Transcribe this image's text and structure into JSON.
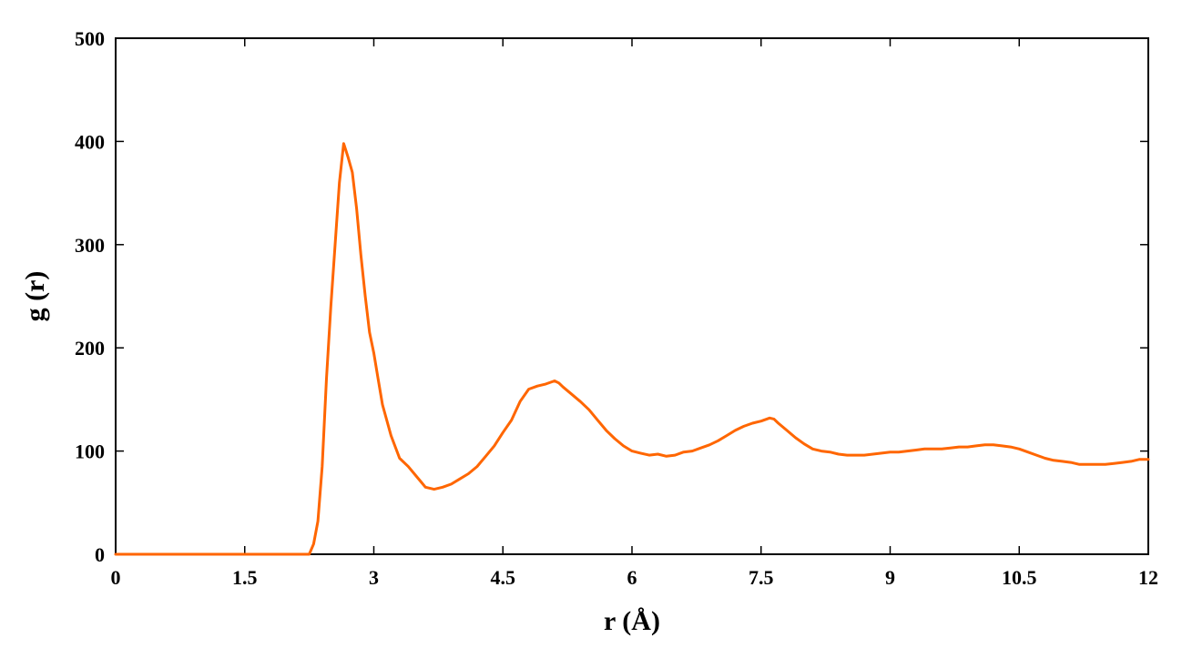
{
  "chart_data": {
    "type": "line",
    "title": "",
    "xlabel": "r (Å)",
    "ylabel": "g (r)",
    "xlim": [
      0,
      12
    ],
    "ylim": [
      0,
      500
    ],
    "xticks": [
      0,
      1.5,
      3,
      4.5,
      6,
      7.5,
      9,
      10.5,
      12
    ],
    "xtick_labels": [
      "0",
      "1.5",
      "3",
      "4.5",
      "6",
      "7.5",
      "9",
      "10.5",
      "12"
    ],
    "yticks": [
      0,
      100,
      200,
      300,
      400,
      500
    ],
    "ytick_labels": [
      "0",
      "100",
      "200",
      "300",
      "400",
      "500"
    ],
    "grid": false,
    "legend": "none",
    "line_color": "#ff6600",
    "series": [
      {
        "x": [
          0,
          0.5,
          1.0,
          1.5,
          2.0,
          2.25,
          2.3,
          2.35,
          2.4,
          2.45,
          2.5,
          2.55,
          2.6,
          2.65,
          2.7,
          2.75,
          2.8,
          2.85,
          2.9,
          2.95,
          3.0,
          3.05,
          3.1,
          3.2,
          3.3,
          3.4,
          3.5,
          3.55,
          3.6,
          3.7,
          3.8,
          3.9,
          4.0,
          4.1,
          4.2,
          4.3,
          4.4,
          4.5,
          4.6,
          4.7,
          4.8,
          4.9,
          5.0,
          5.1,
          5.15,
          5.2,
          5.3,
          5.4,
          5.5,
          5.6,
          5.7,
          5.8,
          5.9,
          6.0,
          6.1,
          6.2,
          6.3,
          6.4,
          6.5,
          6.6,
          6.7,
          6.8,
          6.9,
          7.0,
          7.1,
          7.2,
          7.3,
          7.4,
          7.5,
          7.6,
          7.65,
          7.7,
          7.8,
          7.9,
          8.0,
          8.1,
          8.2,
          8.3,
          8.4,
          8.5,
          8.6,
          8.7,
          8.8,
          8.9,
          9.0,
          9.1,
          9.2,
          9.3,
          9.4,
          9.5,
          9.6,
          9.7,
          9.8,
          9.9,
          10.0,
          10.1,
          10.2,
          10.3,
          10.4,
          10.5,
          10.6,
          10.7,
          10.8,
          10.9,
          11.0,
          11.1,
          11.2,
          11.3,
          11.4,
          11.5,
          11.6,
          11.7,
          11.8,
          11.9,
          12.0
        ],
        "y": [
          0,
          0,
          0,
          0,
          0,
          0,
          10,
          32,
          85,
          170,
          240,
          300,
          360,
          398,
          385,
          370,
          335,
          290,
          250,
          215,
          195,
          170,
          145,
          115,
          93,
          85,
          75,
          70,
          65,
          63,
          65,
          68,
          73,
          78,
          85,
          95,
          105,
          118,
          130,
          148,
          160,
          163,
          165,
          168,
          166,
          162,
          155,
          148,
          140,
          130,
          120,
          112,
          105,
          100,
          98,
          96,
          97,
          95,
          96,
          99,
          100,
          103,
          106,
          110,
          115,
          120,
          124,
          127,
          129,
          132,
          131,
          127,
          120,
          113,
          107,
          102,
          100,
          99,
          97,
          96,
          96,
          96,
          97,
          98,
          99,
          99,
          100,
          101,
          102,
          102,
          102,
          103,
          104,
          104,
          105,
          106,
          106,
          105,
          104,
          102,
          99,
          96,
          93,
          91,
          90,
          89,
          87,
          87,
          87,
          87,
          88,
          89,
          90,
          92,
          92
        ]
      }
    ]
  }
}
